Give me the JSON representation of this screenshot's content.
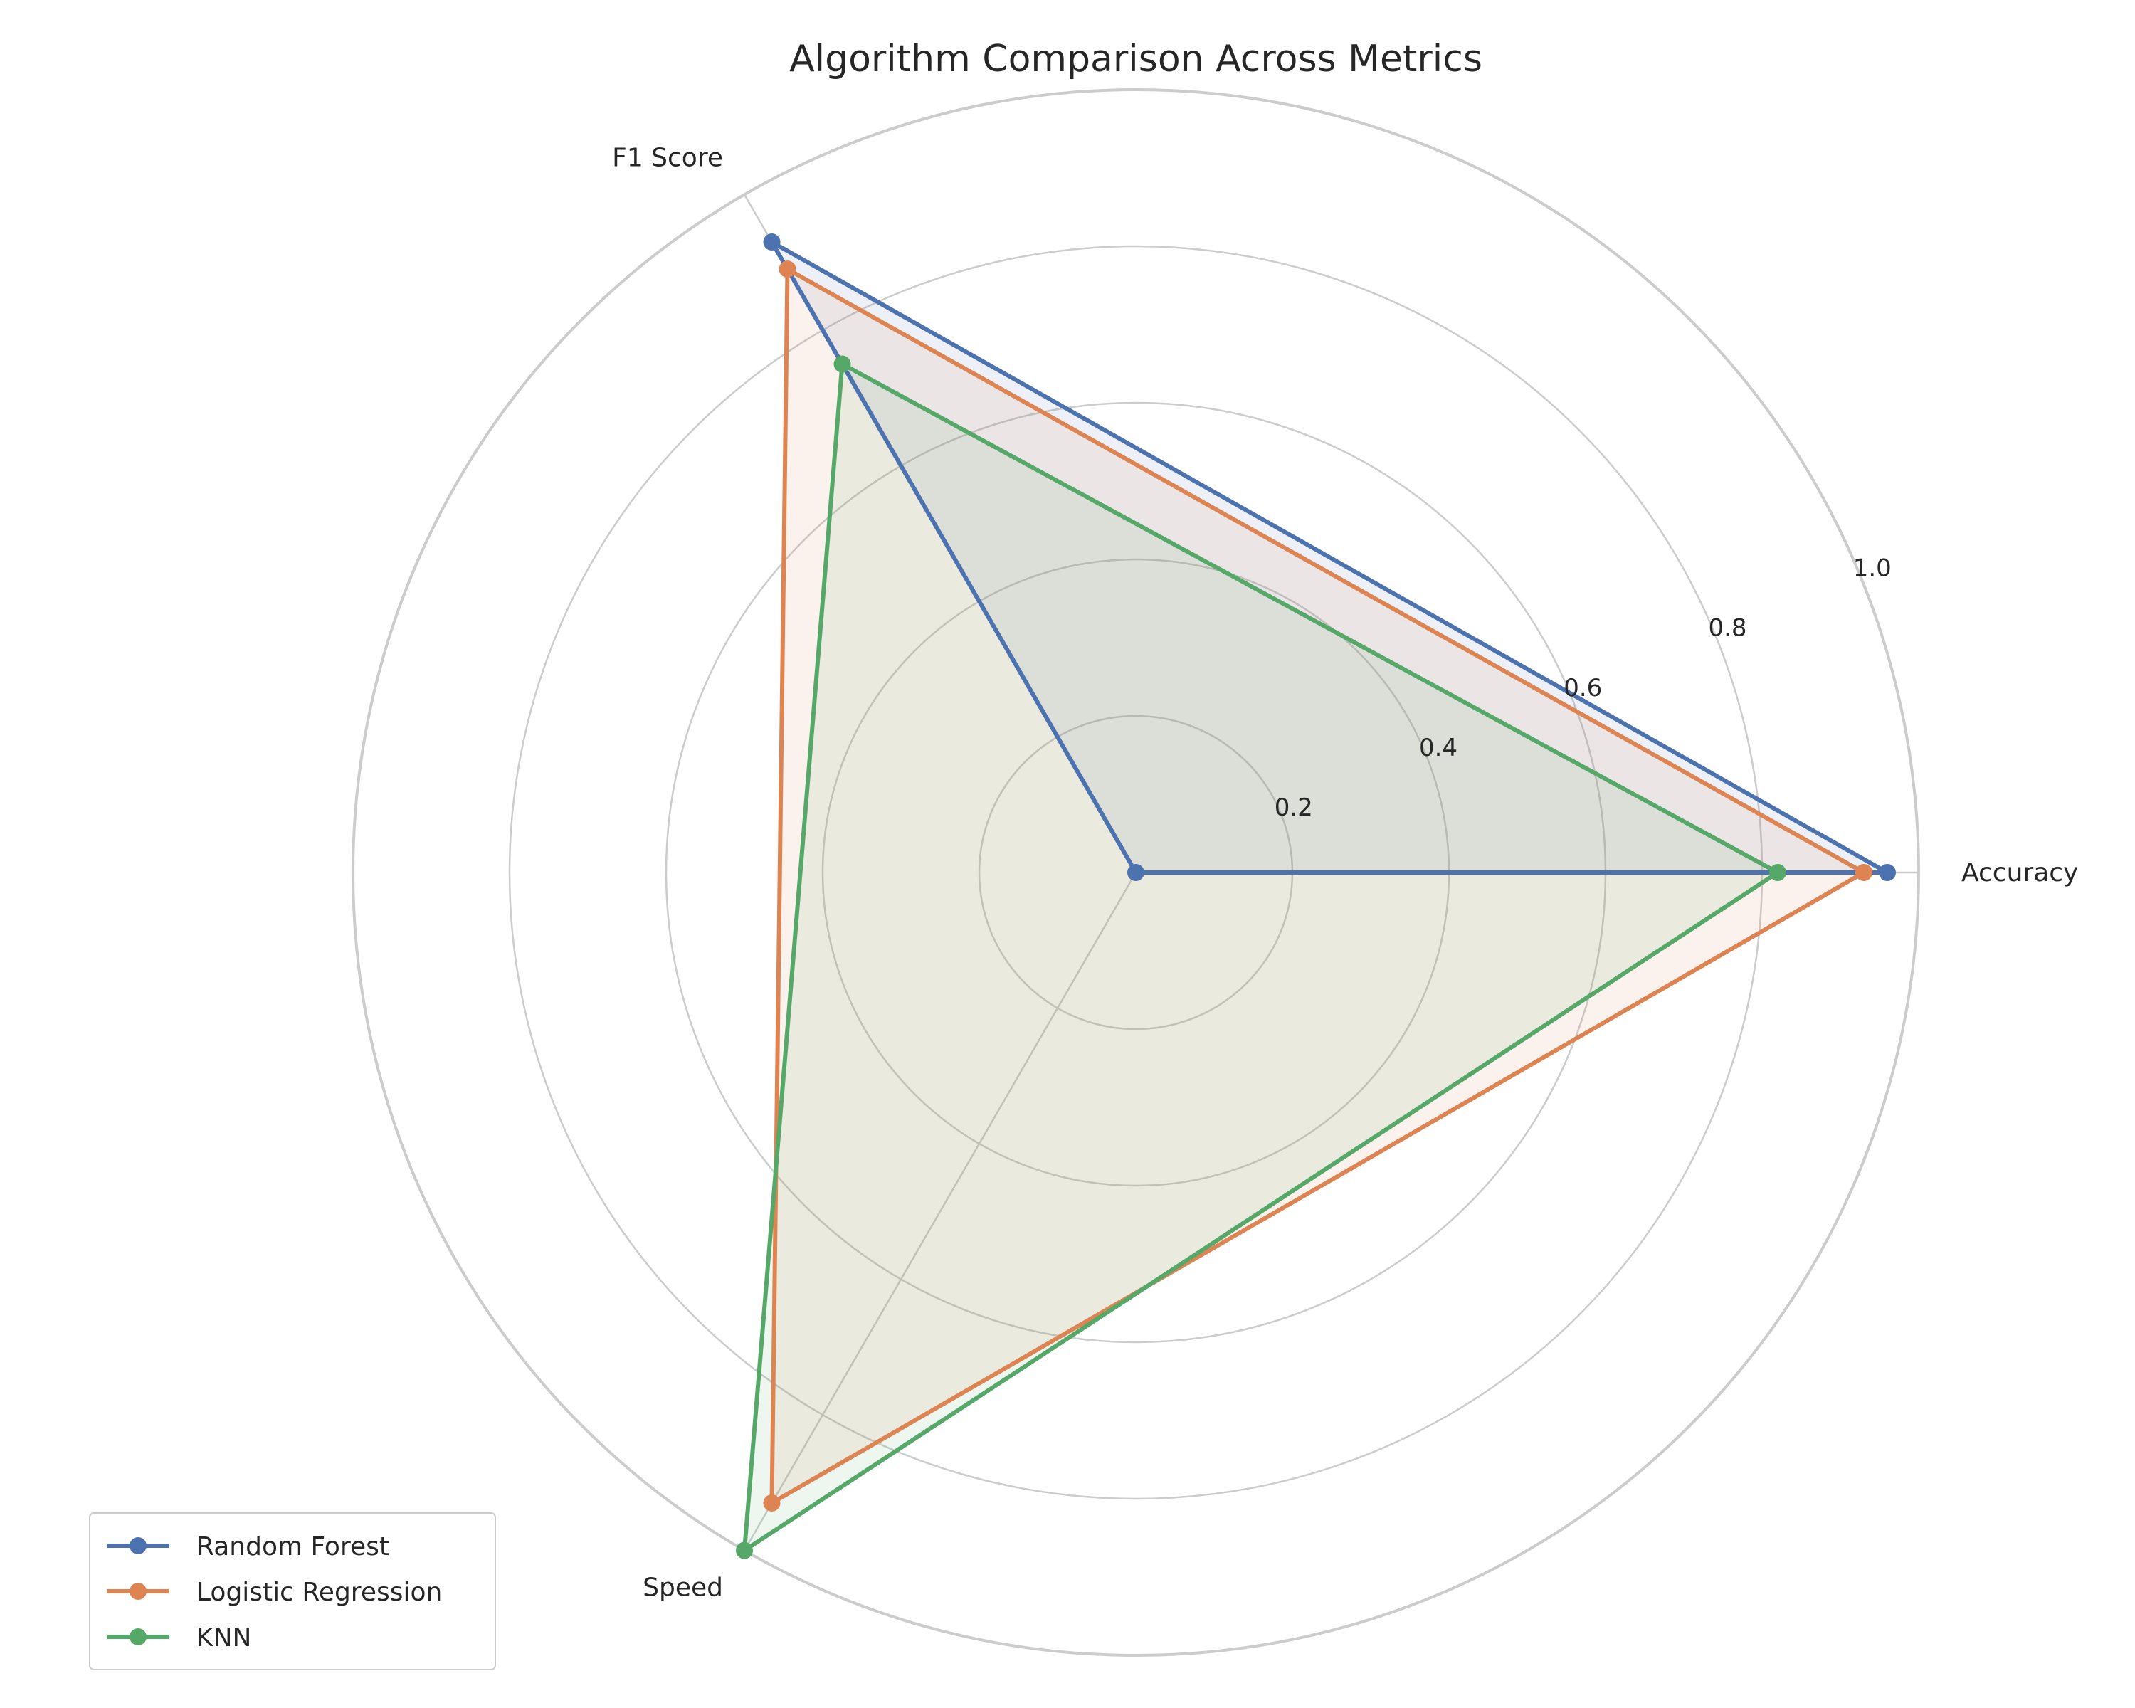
{
  "chart_data": {
    "type": "radar",
    "title": "Algorithm Comparison Across Metrics",
    "axes": [
      "Accuracy",
      "F1 Score",
      "Speed"
    ],
    "r_ticks": [
      "0.2",
      "0.4",
      "0.6",
      "0.8",
      "1.0"
    ],
    "r_tick_values": [
      0.2,
      0.4,
      0.6,
      0.8,
      1.0
    ],
    "rlim": [
      0,
      1.0
    ],
    "grid": true,
    "legend_position": "lower-left",
    "series": [
      {
        "name": "Random Forest",
        "values": [
          0.96,
          0.93,
          0.0
        ],
        "color": "#4c72b0"
      },
      {
        "name": "Logistic Regression",
        "values": [
          0.93,
          0.89,
          0.93
        ],
        "color": "#dd8452"
      },
      {
        "name": "KNN",
        "values": [
          0.82,
          0.75,
          1.0
        ],
        "color": "#55a868"
      }
    ]
  }
}
